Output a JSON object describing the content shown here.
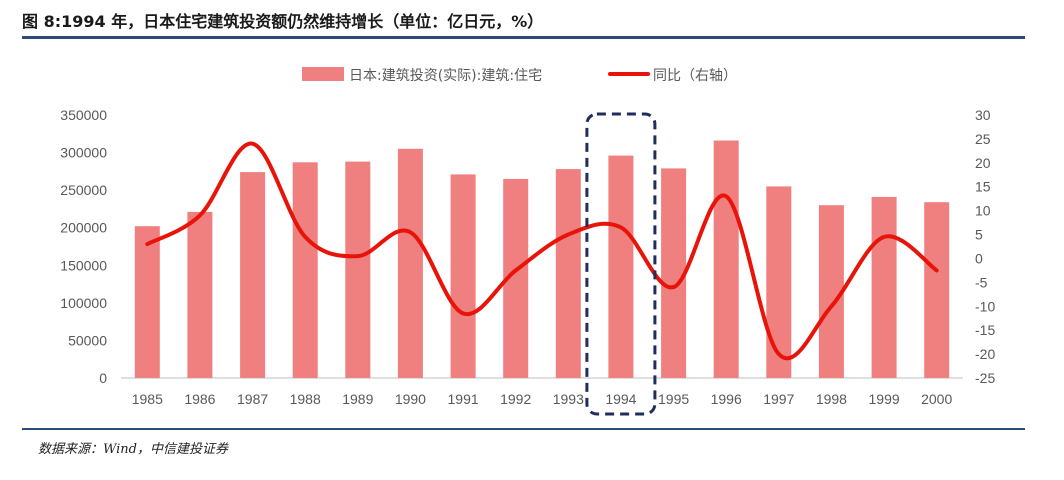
{
  "title": "图 8:1994 年，日本住宅建筑投资额仍然维持增长（单位：亿日元，%）",
  "source": "数据来源：Wind，中信建投证券",
  "chart_data": {
    "type": "bar+line",
    "categories": [
      "1985",
      "1986",
      "1987",
      "1988",
      "1989",
      "1990",
      "1991",
      "1992",
      "1993",
      "1994",
      "1995",
      "1996",
      "1997",
      "1998",
      "1999",
      "2000"
    ],
    "series": [
      {
        "name": "日本:建筑投资(实际):建筑:住宅",
        "type": "bar",
        "axis": "left",
        "color": "#f08080",
        "values": [
          202000,
          221000,
          274000,
          287000,
          288000,
          305000,
          271000,
          265000,
          278000,
          296000,
          279000,
          316000,
          255000,
          230000,
          241000,
          234000
        ]
      },
      {
        "name": "同比（右轴）",
        "type": "line",
        "axis": "right",
        "color": "#e8140a",
        "values": [
          3.0,
          9.0,
          24.0,
          4.5,
          0.5,
          5.5,
          -11.5,
          -2.5,
          5.0,
          6.5,
          -6.0,
          13.0,
          -20.0,
          -10.0,
          4.5,
          -2.5
        ]
      }
    ],
    "y_left": {
      "min": 0,
      "max": 350000,
      "ticks": [
        "0",
        "50000",
        "100000",
        "150000",
        "200000",
        "250000",
        "300000",
        "350000"
      ]
    },
    "y_right": {
      "min": -25,
      "max": 30,
      "ticks": [
        "-25",
        "-20",
        "-15",
        "-10",
        "-5",
        "0",
        "5",
        "10",
        "15",
        "20",
        "25",
        "30"
      ]
    },
    "highlight_category": "1994",
    "legend_position": "top-center",
    "grid": false
  }
}
